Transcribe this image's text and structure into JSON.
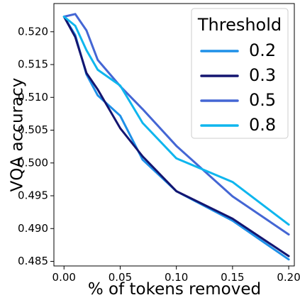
{
  "chart_data": {
    "type": "line",
    "xlabel": "% of tokens removed",
    "ylabel": "VQA accuracy",
    "xlim": [
      -0.009,
      0.205
    ],
    "ylim": [
      0.4843,
      0.5243
    ],
    "x_ticks": [
      "0.00",
      "0.05",
      "0.10",
      "0.15",
      "0.20"
    ],
    "x_tick_values": [
      0.0,
      0.05,
      0.1,
      0.15,
      0.2
    ],
    "y_ticks": [
      "0.485",
      "0.490",
      "0.495",
      "0.500",
      "0.505",
      "0.510",
      "0.515",
      "0.520"
    ],
    "y_tick_values": [
      0.485,
      0.49,
      0.495,
      0.5,
      0.505,
      0.51,
      0.515,
      0.52
    ],
    "legend": {
      "title": "Threshold",
      "placement": "top-right"
    },
    "series": [
      {
        "name": "0.2",
        "color": "#1e90e8",
        "points": [
          [
            0.0,
            0.5223
          ],
          [
            0.01,
            0.5195
          ],
          [
            0.02,
            0.5135
          ],
          [
            0.03,
            0.5103
          ],
          [
            0.05,
            0.5072
          ],
          [
            0.07,
            0.5005
          ],
          [
            0.1,
            0.4957
          ],
          [
            0.15,
            0.4912
          ],
          [
            0.2,
            0.4853
          ]
        ]
      },
      {
        "name": "0.3",
        "color": "#141570",
        "points": [
          [
            0.0,
            0.5223
          ],
          [
            0.01,
            0.5192
          ],
          [
            0.02,
            0.5137
          ],
          [
            0.03,
            0.5112
          ],
          [
            0.05,
            0.5053
          ],
          [
            0.07,
            0.501
          ],
          [
            0.1,
            0.4957
          ],
          [
            0.15,
            0.4915
          ],
          [
            0.2,
            0.4858
          ]
        ]
      },
      {
        "name": "0.5",
        "color": "#4466d4",
        "points": [
          [
            0.0,
            0.5223
          ],
          [
            0.01,
            0.5227
          ],
          [
            0.02,
            0.5202
          ],
          [
            0.03,
            0.5157
          ],
          [
            0.05,
            0.5117
          ],
          [
            0.07,
            0.5082
          ],
          [
            0.1,
            0.5026
          ],
          [
            0.15,
            0.4949
          ],
          [
            0.2,
            0.4891
          ]
        ]
      },
      {
        "name": "0.8",
        "color": "#0fb6ee",
        "points": [
          [
            0.0,
            0.5223
          ],
          [
            0.01,
            0.5209
          ],
          [
            0.02,
            0.5172
          ],
          [
            0.03,
            0.5142
          ],
          [
            0.05,
            0.5118
          ],
          [
            0.07,
            0.5061
          ],
          [
            0.1,
            0.5007
          ],
          [
            0.15,
            0.4971
          ],
          [
            0.2,
            0.4906
          ]
        ]
      }
    ]
  }
}
